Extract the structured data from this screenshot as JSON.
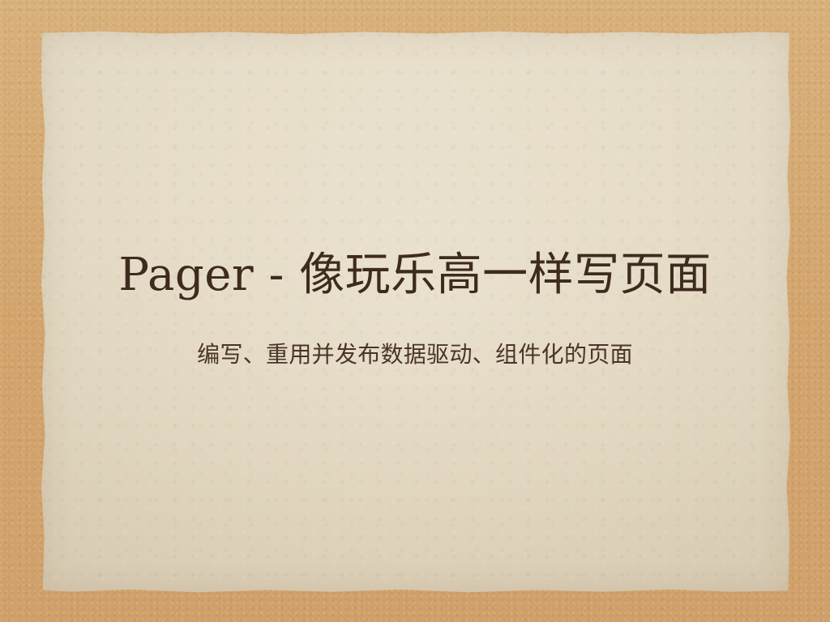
{
  "slide": {
    "title": "Pager - 像玩乐高一样写页面",
    "subtitle": "编写、重用并发布数据驱动、组件化的页面"
  }
}
